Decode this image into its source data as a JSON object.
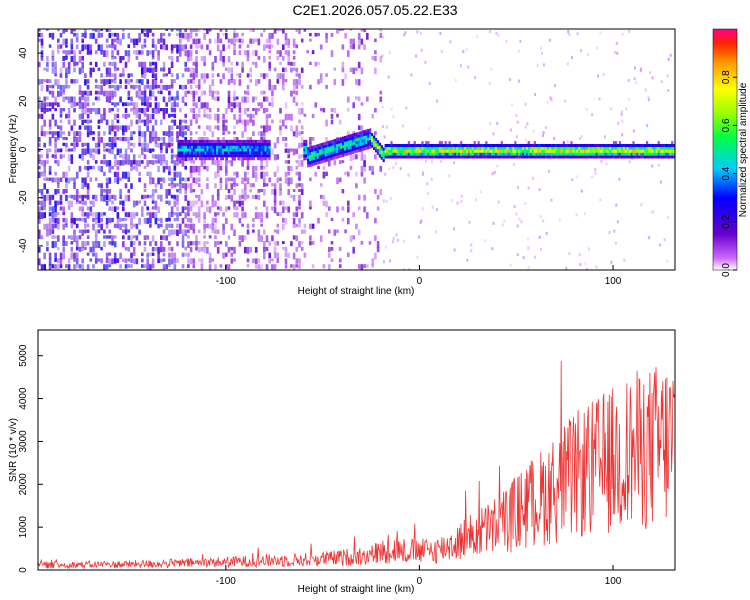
{
  "title": "C2E1.2026.057.05.22.E33",
  "colors": {
    "snr_line": "#ee3333",
    "spectrogram_low": "#6a0dcc",
    "axis": "#000000"
  },
  "chart_data": [
    {
      "type": "heatmap",
      "name": "spectrogram",
      "xlabel": "Height of straight line (km)",
      "ylabel": "Frequency (Hz)",
      "xlim": [
        -197,
        132
      ],
      "ylim": [
        -50,
        50
      ],
      "xticks": [
        -100,
        0,
        100
      ],
      "xtick_labels": [
        "-100",
        "0",
        "100"
      ],
      "yticks": [
        -40,
        -20,
        0,
        20,
        40
      ],
      "ytick_labels": [
        "-40",
        "-20",
        "0",
        "20",
        "40"
      ],
      "colorbar": {
        "label": "Normalized spectral amplitude",
        "range": [
          0,
          1
        ],
        "ticks": [
          0,
          0.2,
          0.4,
          0.6,
          0.8
        ],
        "tick_labels": [
          "0.0",
          "0.2",
          "0.4",
          "0.6",
          "0.8"
        ]
      },
      "description_bands": [
        {
          "x_range": [
            -197,
            -60
          ],
          "signal": "broadband noise across all frequencies",
          "amplitude": 0.15
        },
        {
          "x_range": [
            -120,
            -80
          ],
          "signal": "line near 0 Hz",
          "amplitude": 0.45
        },
        {
          "x_range": [
            -58,
            -25
          ],
          "signal": "line rising from -2 to 6 Hz",
          "amplitude": 0.5
        },
        {
          "x_range": [
            -25,
            132
          ],
          "signal": "narrow line near 0 Hz",
          "amplitude": 0.85
        }
      ]
    },
    {
      "type": "line",
      "name": "snr",
      "xlabel": "Height of straight line (km)",
      "ylabel": "SNR (10 * v/v)",
      "xlim": [
        -197,
        132
      ],
      "ylim": [
        0,
        5600
      ],
      "xticks": [
        -100,
        0,
        100
      ],
      "xtick_labels": [
        "-100",
        "0",
        "100"
      ],
      "yticks": [
        0,
        1000,
        2000,
        3000,
        4000,
        5000
      ],
      "ytick_labels": [
        "0",
        "1000",
        "2000",
        "3000",
        "4000",
        "5000"
      ],
      "envelope": {
        "x": [
          -197,
          -150,
          -110,
          -80,
          -60,
          -40,
          -25,
          -15,
          0,
          10,
          20,
          30,
          40,
          50,
          60,
          70,
          80,
          90,
          100,
          110,
          120,
          132
        ],
        "y": [
          120,
          140,
          180,
          230,
          250,
          300,
          380,
          500,
          450,
          500,
          700,
          900,
          1100,
          1400,
          1700,
          2000,
          2300,
          2500,
          2700,
          2900,
          3000,
          3200
        ]
      }
    }
  ]
}
